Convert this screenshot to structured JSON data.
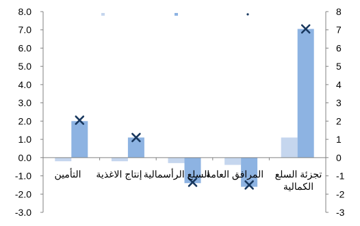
{
  "chart_data": {
    "type": "bar",
    "categories": [
      "تجزئة السلع الكمالية",
      "المرافق العامة",
      "السلع الرأسمالية",
      "إنتاج الاغذية",
      "التأمين"
    ],
    "category_label_lines": [
      [
        "تجزئة السلع",
        "الكمالية"
      ],
      [
        "المرافق العامة"
      ],
      [
        "السلع الرأسمالية"
      ],
      [
        "إنتاج الاغذية"
      ],
      [
        "التأمين"
      ]
    ],
    "series": [
      {
        "name": "",
        "type": "bar",
        "color": "#c5d6ee",
        "values": [
          1.1,
          -0.4,
          -0.3,
          -0.2,
          -0.2
        ]
      },
      {
        "name": "",
        "type": "bar",
        "color": "#8db3e2",
        "values": [
          7.05,
          -1.6,
          -1.4,
          1.1,
          2.0
        ]
      },
      {
        "name": "",
        "type": "marker",
        "marker": "x",
        "color": "#17375e",
        "values": [
          7.05,
          -1.5,
          -1.35,
          1.1,
          2.05
        ]
      }
    ],
    "ylim": [
      -3,
      8
    ],
    "yticks_left": [
      "8.0",
      "7.0",
      "6.0",
      "5.0",
      "4.0",
      "3.0",
      "2.0",
      "1.0",
      "0.0",
      "-1.0",
      "-2.0",
      "-3.0"
    ],
    "yticks_right": [
      "8",
      "7",
      "6",
      "5",
      "4",
      "3",
      "2",
      "1",
      "0",
      "-1",
      "-2",
      "-3"
    ],
    "legend_placement": "top",
    "legend_entries": [
      "",
      "",
      ""
    ],
    "grid": false,
    "title": "",
    "xlabel": "",
    "ylabel": ""
  }
}
